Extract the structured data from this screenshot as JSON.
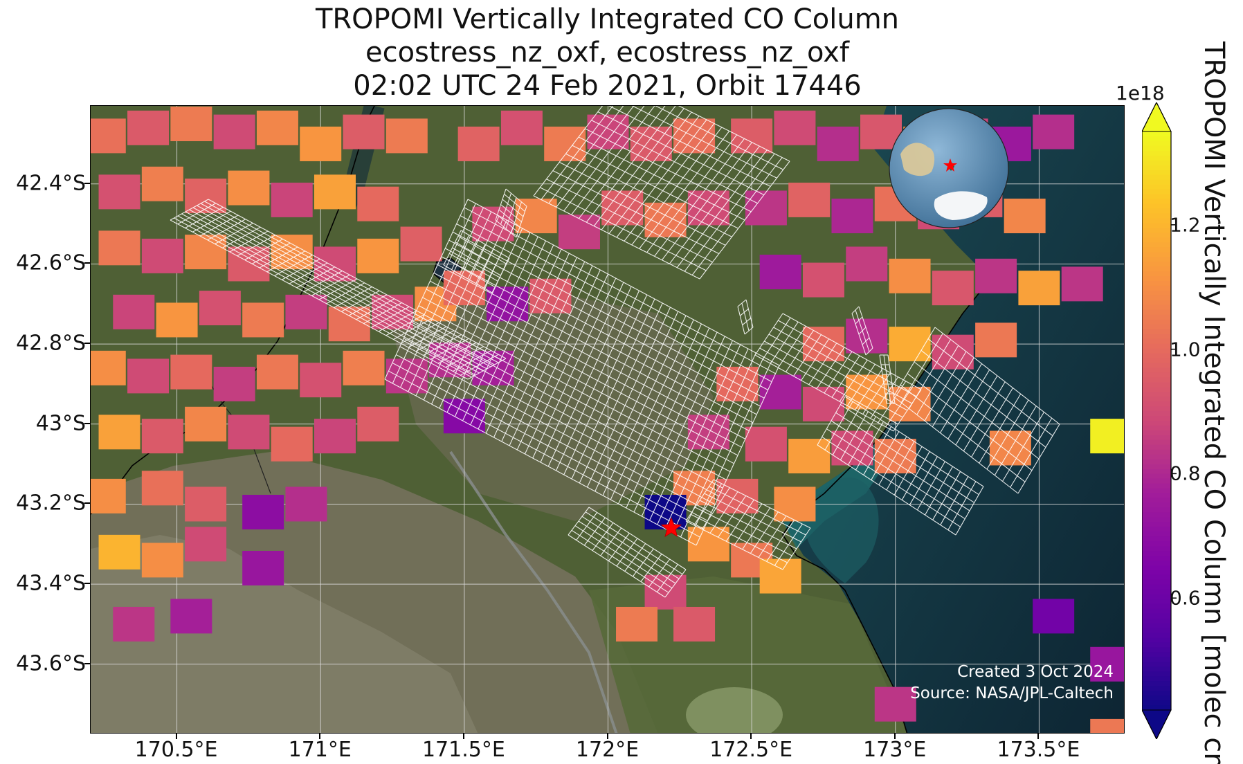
{
  "title": {
    "line1": "TROPOMI Vertically Integrated CO Column",
    "line2": "ecostress_nz_oxf, ecostress_nz_oxf",
    "line3": "02:02 UTC 24 Feb 2021, Orbit 17446"
  },
  "map": {
    "lon_range": [
      170.2,
      173.8
    ],
    "lat_range": [
      -43.775,
      -42.205
    ],
    "lat_ticks": [
      {
        "value": -42.4,
        "label": "42.4°S"
      },
      {
        "value": -42.6,
        "label": "42.6°S"
      },
      {
        "value": -42.8,
        "label": "42.8°S"
      },
      {
        "value": -43.0,
        "label": "43°S"
      },
      {
        "value": -43.2,
        "label": "43.2°S"
      },
      {
        "value": -43.4,
        "label": "43.4°S"
      },
      {
        "value": -43.6,
        "label": "43.6°S"
      }
    ],
    "lon_ticks": [
      {
        "value": 170.5,
        "label": "170.5°E"
      },
      {
        "value": 171.0,
        "label": "171°E"
      },
      {
        "value": 171.5,
        "label": "171.5°E"
      },
      {
        "value": 172.0,
        "label": "172°E"
      },
      {
        "value": 172.5,
        "label": "172.5°E"
      },
      {
        "value": 173.0,
        "label": "173°E"
      },
      {
        "value": 173.5,
        "label": "173.5°E"
      }
    ],
    "gridlines": true,
    "basemap": "satellite imagery",
    "colors": {
      "land": "#4a5a30",
      "mountain": "#6b6a55",
      "ocean": "#0f2a3a",
      "coast_water": "#1f6e6e",
      "grid": "#dcdcdc",
      "coastline": "#000000",
      "footprint": "#ffffff"
    },
    "site_marker": {
      "lon": 172.22,
      "lat": -43.26,
      "color": "#ff0000",
      "icon": "star-icon"
    },
    "credit_created": "Created 3 Oct 2024",
    "credit_source": "Source: NASA/JPL-Caltech",
    "inset_globe": {
      "icon": "globe-icon",
      "marker_color": "#ff0000"
    }
  },
  "colorbar": {
    "label": "TROPOMI Vertically Integrated CO Column [molec cm",
    "exponent": "1e18",
    "vmin": 0.42,
    "vmax": 1.35,
    "colormap": "plasma",
    "ticks": [
      {
        "value": 0.6,
        "label": "0.6"
      },
      {
        "value": 0.8,
        "label": "0.8"
      },
      {
        "value": 1.0,
        "label": "1.0"
      },
      {
        "value": 1.2,
        "label": "1.2"
      }
    ],
    "extend": "both"
  },
  "chart_data": {
    "type": "heatmap",
    "units": "1e18 molec cm-2",
    "pixels": [
      [
        170.25,
        -42.28,
        1.02
      ],
      [
        170.4,
        -42.26,
        0.95
      ],
      [
        170.55,
        -42.25,
        1.05
      ],
      [
        170.7,
        -42.27,
        0.9
      ],
      [
        170.85,
        -42.26,
        1.08
      ],
      [
        171.0,
        -42.3,
        1.12
      ],
      [
        171.15,
        -42.27,
        0.96
      ],
      [
        171.3,
        -42.28,
        1.05
      ],
      [
        170.3,
        -42.42,
        0.92
      ],
      [
        170.45,
        -42.4,
        1.06
      ],
      [
        170.6,
        -42.43,
        0.98
      ],
      [
        170.75,
        -42.41,
        1.1
      ],
      [
        170.9,
        -42.44,
        0.88
      ],
      [
        171.05,
        -42.42,
        1.15
      ],
      [
        171.2,
        -42.45,
        1.0
      ],
      [
        170.3,
        -42.56,
        1.04
      ],
      [
        170.45,
        -42.58,
        0.9
      ],
      [
        170.6,
        -42.57,
        1.08
      ],
      [
        170.75,
        -42.6,
        0.95
      ],
      [
        170.9,
        -42.57,
        1.1
      ],
      [
        171.05,
        -42.6,
        0.9
      ],
      [
        171.2,
        -42.58,
        1.12
      ],
      [
        171.35,
        -42.55,
        0.97
      ],
      [
        170.35,
        -42.72,
        0.88
      ],
      [
        170.5,
        -42.74,
        1.12
      ],
      [
        170.65,
        -42.71,
        0.92
      ],
      [
        170.8,
        -42.74,
        1.05
      ],
      [
        170.95,
        -42.72,
        0.86
      ],
      [
        171.1,
        -42.75,
        1.02
      ],
      [
        171.25,
        -42.72,
        0.9
      ],
      [
        171.4,
        -42.7,
        1.1
      ],
      [
        170.25,
        -42.86,
        1.1
      ],
      [
        170.4,
        -42.88,
        0.9
      ],
      [
        170.55,
        -42.87,
        1.0
      ],
      [
        170.7,
        -42.9,
        0.86
      ],
      [
        170.85,
        -42.87,
        1.04
      ],
      [
        171.0,
        -42.89,
        0.92
      ],
      [
        171.15,
        -42.86,
        1.06
      ],
      [
        171.3,
        -42.88,
        0.84
      ],
      [
        170.3,
        -43.02,
        1.15
      ],
      [
        170.45,
        -43.03,
        0.95
      ],
      [
        170.6,
        -43.0,
        1.08
      ],
      [
        170.75,
        -43.02,
        0.9
      ],
      [
        170.9,
        -43.05,
        1.0
      ],
      [
        171.05,
        -43.03,
        0.88
      ],
      [
        171.2,
        -43.0,
        0.96
      ],
      [
        170.25,
        -43.18,
        1.1
      ],
      [
        170.45,
        -43.16,
        1.02
      ],
      [
        170.6,
        -43.2,
        0.96
      ],
      [
        170.8,
        -43.22,
        0.7
      ],
      [
        170.95,
        -43.2,
        0.82
      ],
      [
        170.3,
        -43.32,
        1.2
      ],
      [
        170.45,
        -43.34,
        1.1
      ],
      [
        170.6,
        -43.3,
        0.9
      ],
      [
        170.8,
        -43.36,
        0.74
      ],
      [
        170.35,
        -43.5,
        0.84
      ],
      [
        170.55,
        -43.48,
        0.78
      ],
      [
        171.55,
        -42.3,
        0.98
      ],
      [
        171.7,
        -42.26,
        0.92
      ],
      [
        171.85,
        -42.3,
        1.05
      ],
      [
        172.0,
        -42.27,
        0.88
      ],
      [
        172.15,
        -42.3,
        0.95
      ],
      [
        172.3,
        -42.28,
        1.02
      ],
      [
        171.6,
        -42.5,
        0.9
      ],
      [
        171.75,
        -42.48,
        1.08
      ],
      [
        171.9,
        -42.52,
        0.86
      ],
      [
        172.05,
        -42.46,
        0.96
      ],
      [
        172.2,
        -42.49,
        1.04
      ],
      [
        172.35,
        -42.46,
        0.9
      ],
      [
        171.5,
        -42.66,
        1.0
      ],
      [
        171.65,
        -42.7,
        0.72
      ],
      [
        171.8,
        -42.68,
        0.95
      ],
      [
        171.45,
        -42.84,
        0.82
      ],
      [
        171.6,
        -42.86,
        0.78
      ],
      [
        171.5,
        -42.98,
        0.68
      ],
      [
        172.5,
        -42.28,
        0.96
      ],
      [
        172.65,
        -42.26,
        0.9
      ],
      [
        172.8,
        -42.3,
        0.82
      ],
      [
        172.95,
        -42.27,
        0.94
      ],
      [
        173.1,
        -42.3,
        1.12
      ],
      [
        173.25,
        -42.28,
        0.88
      ],
      [
        173.4,
        -42.3,
        0.75
      ],
      [
        173.55,
        -42.27,
        0.82
      ],
      [
        172.55,
        -42.46,
        0.84
      ],
      [
        172.7,
        -42.44,
        0.98
      ],
      [
        172.85,
        -42.48,
        0.8
      ],
      [
        173.0,
        -42.45,
        1.02
      ],
      [
        173.15,
        -42.47,
        0.9
      ],
      [
        173.3,
        -42.44,
        0.96
      ],
      [
        173.45,
        -42.48,
        1.08
      ],
      [
        172.6,
        -42.62,
        0.76
      ],
      [
        172.75,
        -42.64,
        0.92
      ],
      [
        172.9,
        -42.6,
        0.86
      ],
      [
        173.05,
        -42.63,
        1.1
      ],
      [
        173.2,
        -42.66,
        0.94
      ],
      [
        173.35,
        -42.63,
        0.84
      ],
      [
        173.5,
        -42.66,
        1.15
      ],
      [
        172.75,
        -42.8,
        1.0
      ],
      [
        172.9,
        -42.78,
        0.82
      ],
      [
        173.05,
        -42.8,
        1.18
      ],
      [
        173.2,
        -42.82,
        0.9
      ],
      [
        173.35,
        -42.79,
        1.04
      ],
      [
        172.45,
        -42.9,
        1.0
      ],
      [
        172.6,
        -42.92,
        0.78
      ],
      [
        172.75,
        -42.95,
        0.9
      ],
      [
        172.9,
        -42.92,
        1.12
      ],
      [
        173.05,
        -42.95,
        1.08
      ],
      [
        172.35,
        -43.02,
        0.86
      ],
      [
        172.55,
        -43.05,
        0.92
      ],
      [
        172.7,
        -43.08,
        1.14
      ],
      [
        172.85,
        -43.06,
        0.9
      ],
      [
        173.0,
        -43.08,
        1.05
      ],
      [
        172.3,
        -43.16,
        1.06
      ],
      [
        172.45,
        -43.18,
        0.98
      ],
      [
        172.65,
        -43.2,
        1.1
      ],
      [
        172.2,
        -43.22,
        0.42
      ],
      [
        172.35,
        -43.3,
        1.12
      ],
      [
        172.5,
        -43.34,
        1.04
      ],
      [
        172.6,
        -43.38,
        1.16
      ],
      [
        172.2,
        -43.42,
        0.9
      ],
      [
        172.1,
        -43.5,
        1.05
      ],
      [
        172.3,
        -43.5,
        0.95
      ],
      [
        173.65,
        -42.65,
        0.84
      ],
      [
        173.75,
        -43.03,
        1.33
      ],
      [
        173.4,
        -43.06,
        1.08
      ],
      [
        173.55,
        -43.48,
        0.62
      ],
      [
        173.75,
        -43.6,
        0.74
      ],
      [
        173.0,
        -43.7,
        0.84
      ],
      [
        173.75,
        -43.78,
        1.04
      ]
    ]
  }
}
